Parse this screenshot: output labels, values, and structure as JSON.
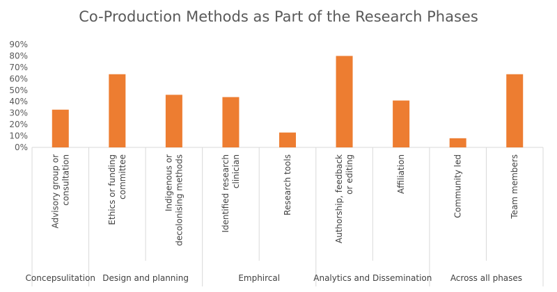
{
  "chart_data": {
    "type": "bar",
    "title": "Co-Production Methods as Part of the Research Phases",
    "xlabel": "",
    "ylabel": "",
    "ylim": [
      0,
      0.9
    ],
    "yticks": [
      "0%",
      "10%",
      "20%",
      "30%",
      "40%",
      "50%",
      "60%",
      "70%",
      "80%",
      "90%"
    ],
    "grid": false,
    "bar_color": "#ED7D31",
    "categories": [
      "Advisory group or consultation",
      "Ethics or funding committee",
      "Indigenous or decolonising methods",
      "Identified research clinician",
      "Research tools",
      "Authorship, feedback or editing",
      "Affiliation",
      "Community led",
      "Team members"
    ],
    "values": [
      0.33,
      0.64,
      0.46,
      0.44,
      0.13,
      0.8,
      0.41,
      0.08,
      0.64
    ],
    "groups": [
      {
        "label": "Concepsulitation",
        "categories": [
          "Advisory group or consultation"
        ]
      },
      {
        "label": "Design and planning",
        "categories": [
          "Ethics or funding committee",
          "Indigenous or decolonising methods"
        ]
      },
      {
        "label": "Emphircal",
        "categories": [
          "Identified research clinician",
          "Research tools"
        ]
      },
      {
        "label": "Analytics and Dissemination",
        "categories": [
          "Authorship, feedback or editing",
          "Affiliation"
        ]
      },
      {
        "label": "Across all phases",
        "categories": [
          "Community led",
          "Team members"
        ]
      }
    ]
  }
}
